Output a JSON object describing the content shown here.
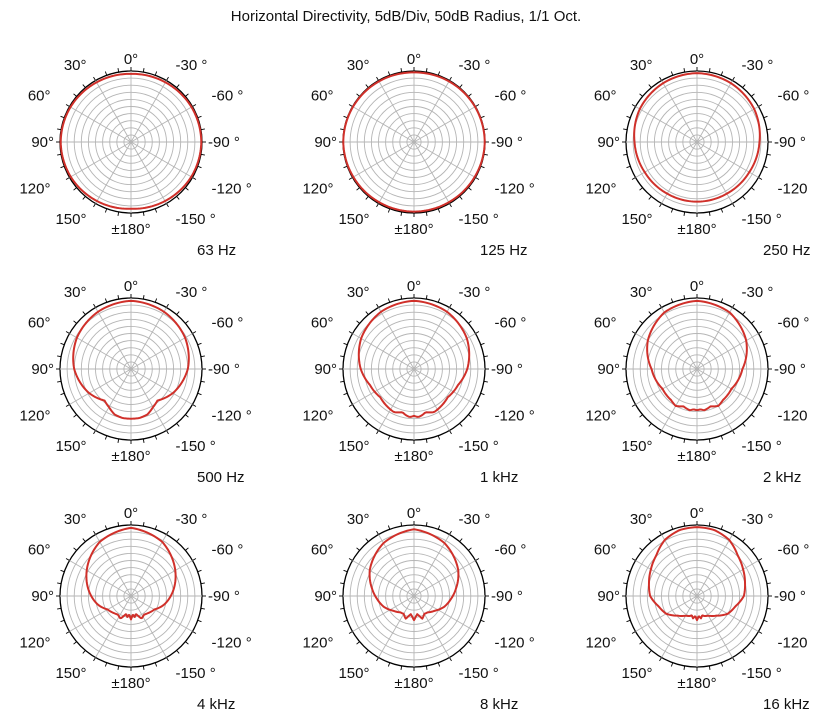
{
  "title": "Horizontal Directivity, 5dB/Div, 50dB Radius, 1/1 Oct.",
  "chart_data": {
    "type": "polar",
    "title": "Horizontal Directivity, 5dB/Div, 50dB Radius, 1/1 Oct.",
    "radial_scale": {
      "db_per_division": 5,
      "radius_db": 50,
      "divisions": 10
    },
    "angle_labels": [
      "0°",
      "-30 °",
      "-60 °",
      "-90 °",
      "-120 °",
      "-150 °",
      "±180°",
      "150°",
      "120°",
      "90°",
      "60°",
      "30°"
    ],
    "grid": true,
    "line_color": "#d0302a",
    "plots": [
      {
        "frequency": "63 Hz",
        "angles_deg": [
          0,
          30,
          60,
          90,
          120,
          150,
          180
        ],
        "level_db": [
          -2.0,
          -1.5,
          -0.8,
          -0.5,
          -1.0,
          -2.0,
          -3.0
        ]
      },
      {
        "frequency": "125 Hz",
        "angles_deg": [
          0,
          30,
          60,
          90,
          120,
          150,
          180
        ],
        "level_db": [
          -1.0,
          -0.7,
          -0.4,
          -0.2,
          -0.7,
          -1.0,
          -1.0
        ]
      },
      {
        "frequency": "250 Hz",
        "angles_deg": [
          0,
          30,
          60,
          90,
          120,
          150,
          180
        ],
        "level_db": [
          -1.5,
          -2.2,
          -3.5,
          -6.0,
          -7.5,
          -8.0,
          -8.0
        ]
      },
      {
        "frequency": "500 Hz",
        "angles_deg": [
          0,
          30,
          60,
          90,
          120,
          140,
          150,
          160,
          170,
          180
        ],
        "level_db": [
          -2.0,
          -3.5,
          -6.0,
          -10.0,
          -16.0,
          -21.0,
          -19.0,
          -16.0,
          -15.0,
          -15.0
        ]
      },
      {
        "frequency": "1 kHz",
        "angles_deg": [
          0,
          30,
          60,
          90,
          110,
          130,
          150,
          155,
          160,
          165,
          170,
          175,
          180
        ],
        "level_db": [
          -2.0,
          -3.5,
          -7.0,
          -12.5,
          -17.0,
          -19.0,
          -17.0,
          -16.5,
          -17.5,
          -18.5,
          -17.0,
          -16.0,
          -17.0
        ]
      },
      {
        "frequency": "2 kHz",
        "angles_deg": [
          0,
          30,
          60,
          90,
          105,
          120,
          140,
          150,
          160,
          170,
          175,
          180
        ],
        "level_db": [
          -2.0,
          -4.0,
          -10.0,
          -18.0,
          -20.0,
          -22.0,
          -21.5,
          -20.0,
          -22.0,
          -20.5,
          -21.5,
          -21.0
        ]
      },
      {
        "frequency": "4 kHz",
        "angles_deg": [
          0,
          30,
          60,
          90,
          105,
          120,
          135,
          145,
          155,
          160,
          165,
          170,
          175,
          180
        ],
        "level_db": [
          -2.0,
          -6.0,
          -14.0,
          -22.0,
          -26.0,
          -31.0,
          -33.0,
          -34.0,
          -32.5,
          -35.0,
          -37.0,
          -35.0,
          -37.0,
          -33.5
        ]
      },
      {
        "frequency": "8 kHz",
        "angles_deg": [
          0,
          30,
          60,
          80,
          95,
          110,
          125,
          140,
          150,
          160,
          165,
          170,
          175,
          180
        ],
        "level_db": [
          -3.0,
          -7.0,
          -14.0,
          -20.0,
          -24.0,
          -27.5,
          -32.0,
          -35.0,
          -35.5,
          -33.0,
          -35.5,
          -37.0,
          -35.5,
          -33.0
        ]
      },
      {
        "frequency": "16 kHz",
        "angles_deg": [
          0,
          15,
          30,
          45,
          60,
          75,
          90,
          105,
          120,
          135,
          150,
          160,
          165,
          170,
          175,
          180
        ],
        "level_db": [
          -1.5,
          -2.0,
          -4.5,
          -9.5,
          -12.5,
          -15.0,
          -17.0,
          -22.0,
          -25.0,
          -30.5,
          -34.0,
          -35.0,
          -36.0,
          -34.0,
          -36.0,
          -33.0
        ]
      }
    ]
  }
}
